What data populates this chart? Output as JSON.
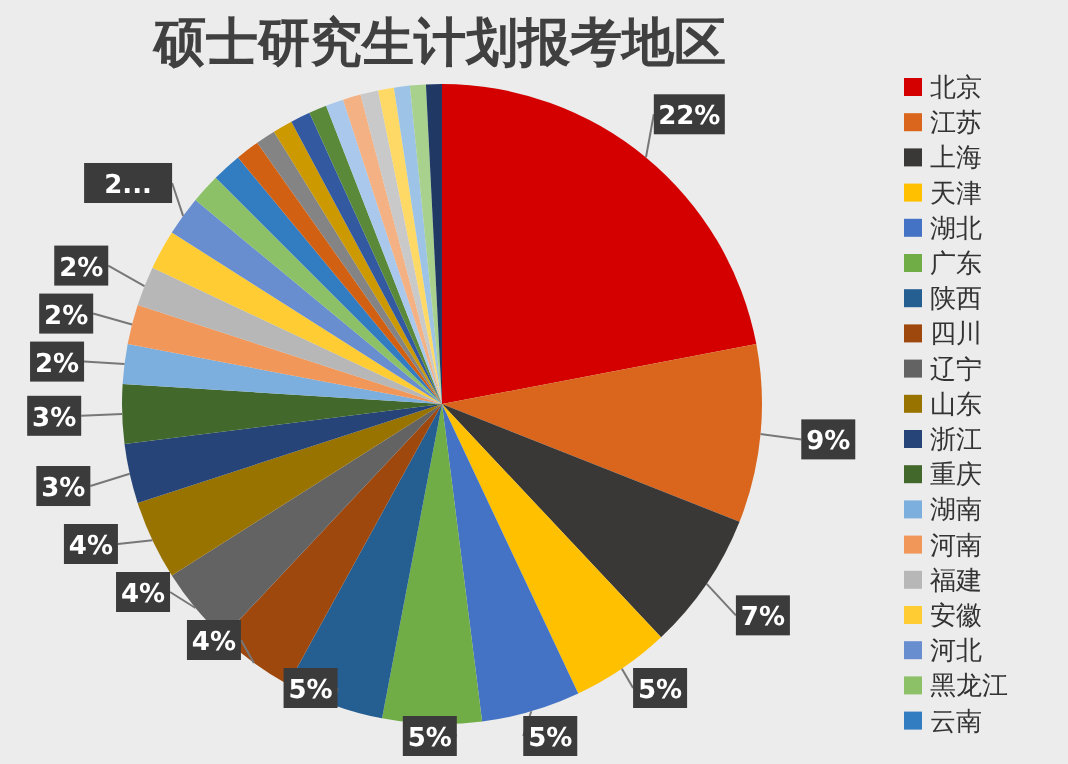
{
  "chart_data": {
    "type": "pie",
    "title": "硕士研究生计划报考地区",
    "legend": "right",
    "categories": [
      "北京",
      "江苏",
      "上海",
      "天津",
      "湖北",
      "广东",
      "陕西",
      "四川",
      "辽宁",
      "山东",
      "浙江",
      "重庆",
      "湖南",
      "河南",
      "福建",
      "安徽",
      "河北",
      "黑龙江",
      "云南",
      null,
      null,
      null,
      null,
      null,
      null,
      null,
      null,
      null,
      null,
      null,
      null
    ],
    "values": [
      22,
      9,
      7,
      5,
      5,
      5,
      5,
      4,
      4,
      4,
      3,
      3,
      2,
      2,
      2,
      2,
      2,
      1.5,
      1.5,
      1.2,
      1,
      1,
      1,
      0.9,
      0.9,
      0.9,
      0.9,
      0.8,
      0.8,
      0.8,
      0.8
    ],
    "value_labels": [
      "22%",
      "9%",
      "7%",
      "5%",
      "5%",
      "5%",
      "5%",
      "4%",
      "4%",
      "4%",
      "3%",
      "3%",
      "2%",
      "2%",
      "2%",
      null,
      "2...",
      null,
      null,
      null,
      null,
      null,
      null,
      null,
      null,
      null,
      null,
      null,
      null,
      null,
      null
    ],
    "colors": [
      "#d40000",
      "#d9661c",
      "#3a3836",
      "#ffc000",
      "#4472c4",
      "#70ad47",
      "#255e91",
      "#9e480e",
      "#636363",
      "#997300",
      "#264478",
      "#43682b",
      "#7cafdd",
      "#f1975a",
      "#b7b7b7",
      "#ffcd33",
      "#698ed0",
      "#8cc168",
      "#327dc2",
      "#d26012",
      "#848484",
      "#cc9a00",
      "#335aa1",
      "#5a8a39",
      "#a9c8eb",
      "#f4b183",
      "#c9c9c9",
      "#ffd966",
      "#9dc3e6",
      "#a9d18e",
      "#1f3864"
    ]
  }
}
